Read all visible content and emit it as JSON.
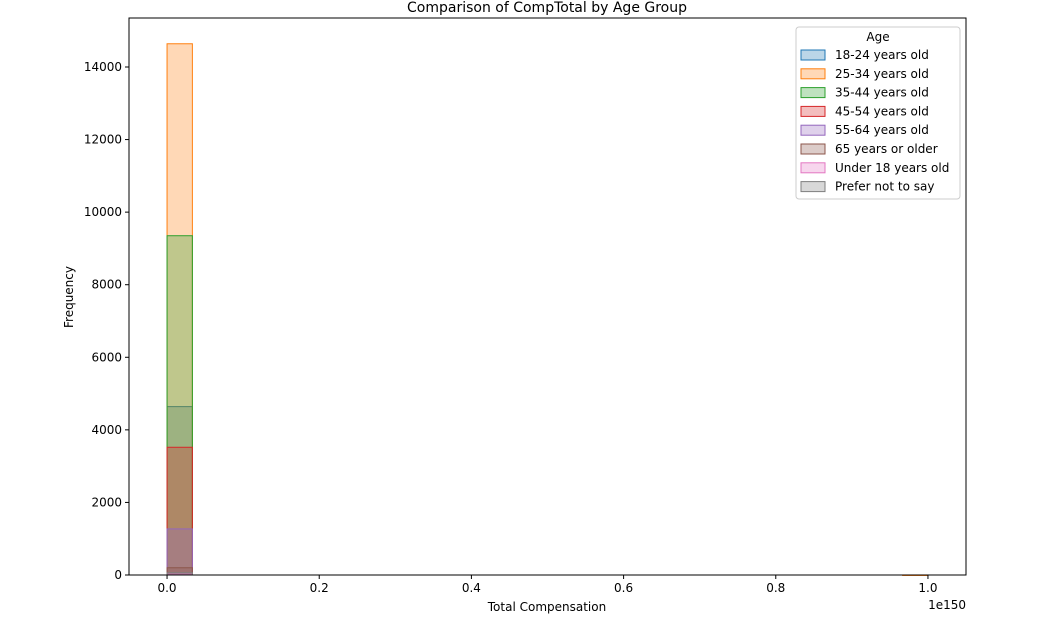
{
  "chart_data": {
    "type": "histogram",
    "title": "Comparison of CompTotal by Age Group",
    "xlabel": "Total Compensation",
    "ylabel": "Frequency",
    "x_offset_label": "1e150",
    "xlim": [
      -0.05,
      1.05
    ],
    "ylim": [
      0,
      15350
    ],
    "xticks": [
      0.0,
      0.2,
      0.4,
      0.6,
      0.8,
      1.0
    ],
    "xtick_labels": [
      "0.0",
      "0.2",
      "0.4",
      "0.6",
      "0.8",
      "1.0"
    ],
    "yticks": [
      0,
      2000,
      4000,
      6000,
      8000,
      10000,
      12000,
      14000
    ],
    "ytick_labels": [
      "0",
      "2000",
      "4000",
      "6000",
      "8000",
      "10000",
      "12000",
      "14000"
    ],
    "grid": false,
    "legend_title": "Age",
    "legend_position": "top-right",
    "bin_edges": [
      0.0,
      0.0333,
      0.0667,
      0.1,
      0.1333,
      0.1667,
      0.2,
      0.2333,
      0.2667,
      0.3,
      0.3333,
      0.3667,
      0.4,
      0.4333,
      0.4667,
      0.5,
      0.5333,
      0.5667,
      0.6,
      0.6333,
      0.6667,
      0.7,
      0.7333,
      0.7667,
      0.8,
      0.8333,
      0.8667,
      0.9,
      0.9333,
      0.9667,
      1.0
    ],
    "series": [
      {
        "name": "18-24 years old",
        "color": "#1f77b4",
        "values": [
          4640,
          0,
          0,
          0,
          0,
          0,
          0,
          0,
          0,
          0,
          0,
          0,
          0,
          0,
          0,
          0,
          0,
          0,
          0,
          0,
          0,
          0,
          0,
          0,
          0,
          0,
          0,
          0,
          0,
          0
        ]
      },
      {
        "name": "25-34 years old",
        "color": "#ff7f0e",
        "values": [
          14640,
          0,
          0,
          0,
          0,
          0,
          0,
          0,
          0,
          0,
          0,
          0,
          0,
          0,
          0,
          0,
          0,
          0,
          0,
          0,
          0,
          0,
          0,
          0,
          0,
          0,
          0,
          0,
          0,
          1
        ]
      },
      {
        "name": "35-44 years old",
        "color": "#2ca02c",
        "values": [
          9350,
          0,
          0,
          0,
          0,
          0,
          0,
          0,
          0,
          0,
          0,
          0,
          0,
          0,
          0,
          0,
          0,
          0,
          0,
          0,
          0,
          0,
          0,
          0,
          0,
          0,
          0,
          0,
          0,
          0
        ]
      },
      {
        "name": "45-54 years old",
        "color": "#d62728",
        "values": [
          3520,
          0,
          0,
          0,
          0,
          0,
          0,
          0,
          0,
          0,
          0,
          0,
          0,
          0,
          0,
          0,
          0,
          0,
          0,
          0,
          0,
          0,
          0,
          0,
          0,
          0,
          0,
          0,
          0,
          0
        ]
      },
      {
        "name": "55-64 years old",
        "color": "#9467bd",
        "values": [
          1270,
          0,
          0,
          0,
          0,
          0,
          0,
          0,
          0,
          0,
          0,
          0,
          0,
          0,
          0,
          0,
          0,
          0,
          0,
          0,
          0,
          0,
          0,
          0,
          0,
          0,
          0,
          0,
          0,
          0
        ]
      },
      {
        "name": "65 years or older",
        "color": "#8c564b",
        "values": [
          200,
          0,
          0,
          0,
          0,
          0,
          0,
          0,
          0,
          0,
          0,
          0,
          0,
          0,
          0,
          0,
          0,
          0,
          0,
          0,
          0,
          0,
          0,
          0,
          0,
          0,
          0,
          0,
          0,
          0
        ]
      },
      {
        "name": "Under 18 years old",
        "color": "#e377c2",
        "values": [
          30,
          0,
          0,
          0,
          0,
          0,
          0,
          0,
          0,
          0,
          0,
          0,
          0,
          0,
          0,
          0,
          0,
          0,
          0,
          0,
          0,
          0,
          0,
          0,
          0,
          0,
          0,
          0,
          0,
          0
        ]
      },
      {
        "name": "Prefer not to say",
        "color": "#7f7f7f",
        "values": [
          60,
          0,
          0,
          0,
          0,
          0,
          0,
          0,
          0,
          0,
          0,
          0,
          0,
          0,
          0,
          0,
          0,
          0,
          0,
          0,
          0,
          0,
          0,
          0,
          0,
          0,
          0,
          0,
          0,
          0
        ]
      }
    ]
  }
}
